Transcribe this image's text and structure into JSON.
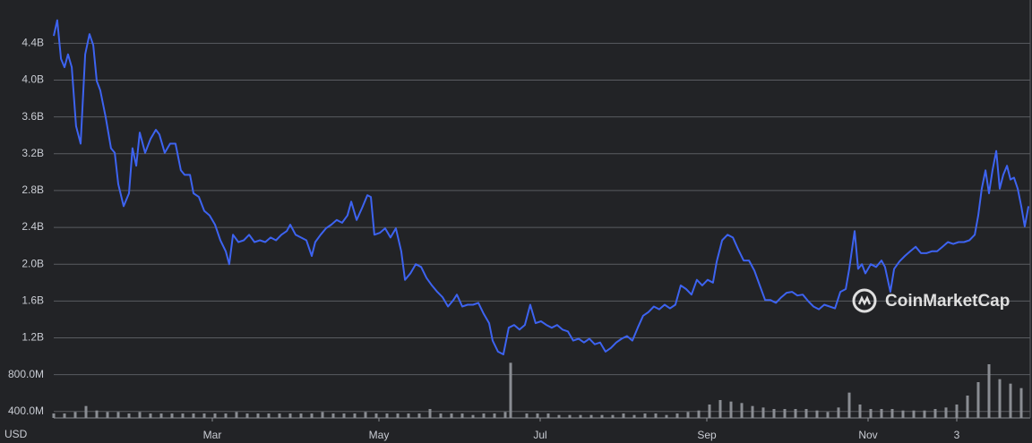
{
  "chart_data": {
    "type": "line",
    "y_label": "USD",
    "watermark": "CoinMarketCap",
    "background": "#222326",
    "grid": true,
    "xlim": [
      0,
      364
    ],
    "xticks": [
      {
        "value": 59,
        "label": "Mar"
      },
      {
        "value": 121,
        "label": "May"
      },
      {
        "value": 181,
        "label": "Jul"
      },
      {
        "value": 243,
        "label": "Sep"
      },
      {
        "value": 303,
        "label": "Nov"
      },
      {
        "value": 336,
        "label": "3"
      }
    ],
    "ylim": [
      0.33,
      4.87
    ],
    "yticks": [
      {
        "value": 0.4,
        "label": "400.0M"
      },
      {
        "value": 0.8,
        "label": "800.0M"
      },
      {
        "value": 1.2,
        "label": "1.2B"
      },
      {
        "value": 1.6,
        "label": "1.6B"
      },
      {
        "value": 2.0,
        "label": "2.0B"
      },
      {
        "value": 2.4,
        "label": "2.4B"
      },
      {
        "value": 2.8,
        "label": "2.8B"
      },
      {
        "value": 3.2,
        "label": "3.2B"
      },
      {
        "value": 3.6,
        "label": "3.6B"
      },
      {
        "value": 4.0,
        "label": "4.0B"
      },
      {
        "value": 4.4,
        "label": "4.4B"
      }
    ],
    "y2lim": [
      0,
      6
    ],
    "series": [
      {
        "type": "line",
        "color": "#3d63f0",
        "x": [
          0,
          1.3,
          2.7,
          4,
          5.3,
          6.7,
          8.3,
          10,
          11.7,
          13.3,
          14.7,
          16,
          17.3,
          19.3,
          21.3,
          22.7,
          24,
          26,
          28,
          29.3,
          30.7,
          32,
          34,
          36,
          38,
          39.3,
          41.3,
          43.3,
          45.3,
          47.3,
          48.7,
          50.7,
          52,
          54,
          56,
          58,
          60,
          62,
          64,
          65.3,
          66.7,
          68.7,
          70.7,
          72.7,
          74.7,
          76.7,
          78.7,
          80.7,
          82.7,
          84.7,
          86.7,
          88,
          90,
          92,
          94,
          96,
          97.3,
          99.3,
          101.3,
          103.3,
          105.3,
          107.3,
          109.3,
          110.7,
          112.7,
          114.7,
          116.7,
          118,
          119.3,
          121.3,
          123.3,
          125.3,
          127.3,
          129.3,
          130.7,
          132.7,
          134.7,
          136.7,
          138.7,
          140.7,
          142.7,
          144.7,
          146.7,
          148.7,
          150,
          152,
          154,
          156,
          158,
          160,
          162,
          163.3,
          165.3,
          167.3,
          169.3,
          171.3,
          173.3,
          175.3,
          177.3,
          179.3,
          181.3,
          183.3,
          185.3,
          187.3,
          189.3,
          191.3,
          193.3,
          195.3,
          197.3,
          199.3,
          201.3,
          203.3,
          205.3,
          207.3,
          209.3,
          211.3,
          213.3,
          215.3,
          217.3,
          219.3,
          221.3,
          223.3,
          225.3,
          227.3,
          229.3,
          231.3,
          233.3,
          235.3,
          237.3,
          239.3,
          241.3,
          243.3,
          245.3,
          246.7,
          248.7,
          250.7,
          252.7,
          254.7,
          256.7,
          258.7,
          260.7,
          262.7,
          264.7,
          266.7,
          268.7,
          270.7,
          272.7,
          274.7,
          276.7,
          278.7,
          280.7,
          282.7,
          284.7,
          286.7,
          288.7,
          290.7,
          292.7,
          294.7,
          296,
          298,
          299.3,
          300.7,
          302,
          304,
          306,
          308,
          309.3,
          311.3,
          312.7,
          314.7,
          316.7,
          318.7,
          320.7,
          322.7,
          324.7,
          326.7,
          328.7,
          330.7,
          332.7,
          334.7,
          336.7,
          338.7,
          340.7,
          342.7,
          344,
          345.3,
          346.7,
          348,
          349.3,
          350.7,
          352,
          353.3,
          354.7,
          356,
          357.3,
          358.7,
          360,
          361.3,
          362.7
        ],
        "values": [
          4.48,
          4.65,
          4.23,
          4.14,
          4.28,
          4.14,
          3.5,
          3.31,
          4.28,
          4.5,
          4.38,
          3.99,
          3.89,
          3.6,
          3.26,
          3.21,
          2.87,
          2.63,
          2.77,
          3.26,
          3.07,
          3.43,
          3.21,
          3.36,
          3.46,
          3.41,
          3.21,
          3.31,
          3.31,
          3.02,
          2.97,
          2.97,
          2.77,
          2.73,
          2.58,
          2.53,
          2.43,
          2.26,
          2.14,
          2.0,
          2.32,
          2.24,
          2.26,
          2.32,
          2.24,
          2.26,
          2.24,
          2.29,
          2.26,
          2.32,
          2.36,
          2.43,
          2.32,
          2.29,
          2.26,
          2.09,
          2.24,
          2.32,
          2.39,
          2.43,
          2.48,
          2.45,
          2.53,
          2.68,
          2.48,
          2.61,
          2.75,
          2.73,
          2.32,
          2.34,
          2.39,
          2.29,
          2.39,
          2.14,
          1.83,
          1.9,
          2.0,
          1.97,
          1.85,
          1.77,
          1.7,
          1.64,
          1.54,
          1.61,
          1.67,
          1.54,
          1.56,
          1.56,
          1.58,
          1.46,
          1.36,
          1.17,
          1.05,
          1.02,
          1.31,
          1.34,
          1.29,
          1.34,
          1.56,
          1.36,
          1.38,
          1.34,
          1.31,
          1.34,
          1.29,
          1.27,
          1.17,
          1.19,
          1.15,
          1.19,
          1.13,
          1.15,
          1.05,
          1.09,
          1.15,
          1.19,
          1.22,
          1.17,
          1.31,
          1.44,
          1.48,
          1.54,
          1.51,
          1.56,
          1.52,
          1.56,
          1.77,
          1.73,
          1.67,
          1.83,
          1.77,
          1.83,
          1.8,
          2.03,
          2.26,
          2.32,
          2.29,
          2.16,
          2.04,
          2.04,
          1.93,
          1.77,
          1.61,
          1.61,
          1.58,
          1.64,
          1.69,
          1.7,
          1.66,
          1.67,
          1.6,
          1.54,
          1.51,
          1.56,
          1.54,
          1.52,
          1.7,
          1.73,
          1.95,
          2.36,
          1.95,
          2.0,
          1.9,
          2.0,
          1.97,
          2.04,
          1.97,
          1.7,
          1.95,
          2.03,
          2.09,
          2.14,
          2.19,
          2.12,
          2.12,
          2.14,
          2.14,
          2.19,
          2.24,
          2.22,
          2.24,
          2.24,
          2.26,
          2.32,
          2.53,
          2.82,
          3.02,
          2.77,
          3.02,
          3.23,
          2.82,
          2.97,
          3.07,
          2.92,
          2.94,
          2.82,
          2.63,
          2.41,
          2.63
        ]
      },
      {
        "type": "bar",
        "axis": "y2",
        "color": "#8a8d93",
        "x": [
          0,
          4,
          8,
          12,
          16,
          20,
          24,
          28,
          32,
          36,
          40,
          44,
          48,
          52,
          56,
          60,
          64,
          68,
          72,
          76,
          80,
          84,
          88,
          92,
          96,
          100,
          104,
          108,
          112,
          116,
          120,
          124,
          128,
          132,
          136,
          140,
          144,
          148,
          152,
          156,
          160,
          164,
          168,
          170,
          176,
          180,
          184,
          188,
          192,
          196,
          200,
          204,
          208,
          212,
          216,
          220,
          224,
          228,
          232,
          236,
          240,
          244,
          248,
          252,
          256,
          260,
          264,
          268,
          272,
          276,
          280,
          284,
          288,
          292,
          296,
          300,
          304,
          308,
          312,
          316,
          320,
          324,
          328,
          332,
          336,
          340,
          344,
          348,
          352,
          356,
          360
        ],
        "values": [
          0.3,
          0.3,
          0.4,
          0.8,
          0.5,
          0.4,
          0.4,
          0.3,
          0.4,
          0.3,
          0.3,
          0.3,
          0.3,
          0.3,
          0.3,
          0.3,
          0.3,
          0.4,
          0.3,
          0.3,
          0.3,
          0.3,
          0.3,
          0.3,
          0.3,
          0.4,
          0.3,
          0.3,
          0.3,
          0.4,
          0.3,
          0.3,
          0.3,
          0.3,
          0.3,
          0.6,
          0.3,
          0.3,
          0.3,
          0.2,
          0.3,
          0.3,
          0.4,
          3.7,
          0.3,
          0.3,
          0.3,
          0.2,
          0.2,
          0.2,
          0.2,
          0.2,
          0.2,
          0.3,
          0.2,
          0.3,
          0.3,
          0.2,
          0.3,
          0.4,
          0.5,
          0.9,
          1.2,
          1.1,
          1.0,
          0.8,
          0.7,
          0.6,
          0.6,
          0.6,
          0.6,
          0.5,
          0.4,
          0.7,
          1.7,
          0.9,
          0.6,
          0.6,
          0.6,
          0.5,
          0.5,
          0.5,
          0.6,
          0.7,
          0.9,
          1.5,
          2.4,
          3.6,
          2.6,
          2.3,
          2.0
        ]
      }
    ]
  }
}
